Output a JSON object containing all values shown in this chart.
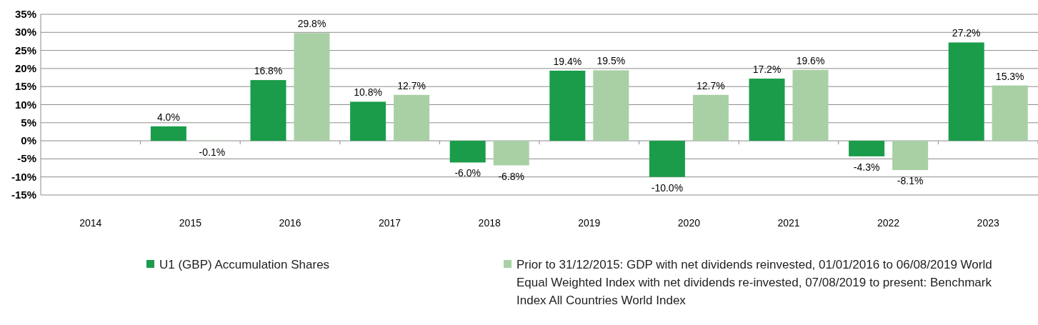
{
  "chart_data": {
    "type": "bar",
    "categories": [
      "2014",
      "2015",
      "2016",
      "2017",
      "2018",
      "2019",
      "2020",
      "2021",
      "2022",
      "2023"
    ],
    "series": [
      {
        "name": "U1 (GBP) Accumulation Shares",
        "color": "#1a9c4a",
        "values": [
          null,
          4.0,
          16.8,
          10.8,
          -6.0,
          19.4,
          -10.0,
          17.2,
          -4.3,
          27.2
        ],
        "value_labels": [
          null,
          "4.0%",
          "16.8%",
          "10.8%",
          "-6.0%",
          "19.4%",
          "-10.0%",
          "17.2%",
          "-4.3%",
          "27.2%"
        ]
      },
      {
        "name": "Prior to 31/12/2015: GDP with net dividends reinvested, 01/01/2016 to 06/08/2019 World Equal Weighted Index with net dividends re-invested, 07/08/2019 to present: Benchmark Index All Countries World Index",
        "color": "#a8d0a4",
        "values": [
          null,
          -0.1,
          29.8,
          12.7,
          -6.8,
          19.5,
          12.7,
          19.6,
          -8.1,
          15.3
        ],
        "value_labels": [
          null,
          "-0.1%",
          "29.8%",
          "12.7%",
          "-6.8%",
          "19.5%",
          "12.7%",
          "19.6%",
          "-8.1%",
          "15.3%"
        ]
      }
    ],
    "ylim": [
      -15,
      35
    ],
    "yticks": [
      {
        "value": -15,
        "label": "-15%"
      },
      {
        "value": -10,
        "label": "-10%"
      },
      {
        "value": -5,
        "label": "-5%"
      },
      {
        "value": 0,
        "label": "0%"
      },
      {
        "value": 5,
        "label": "5%"
      },
      {
        "value": 10,
        "label": "10%"
      },
      {
        "value": 15,
        "label": "15%"
      },
      {
        "value": 20,
        "label": "20%"
      },
      {
        "value": 25,
        "label": "25%"
      },
      {
        "value": 30,
        "label": "30%"
      },
      {
        "value": 35,
        "label": "35%"
      }
    ],
    "grid": "y",
    "legend": "bottom"
  }
}
